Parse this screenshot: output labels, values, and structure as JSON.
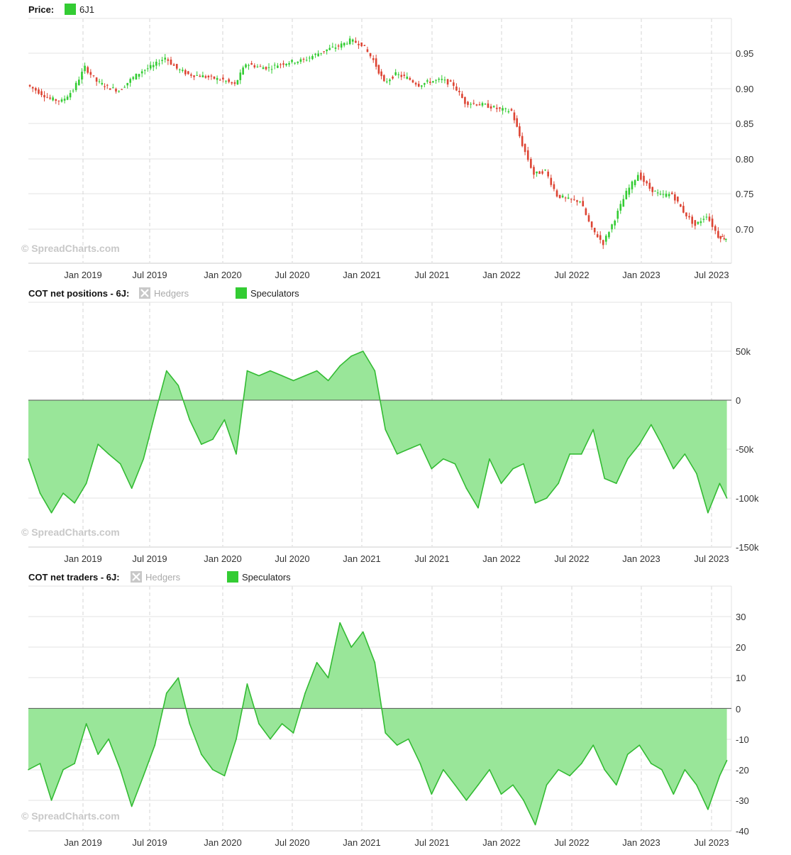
{
  "watermark": "© SpreadCharts.com",
  "chart_data": [
    {
      "type": "candlestick",
      "title": "Price:",
      "legend": [
        {
          "name": "6J1",
          "color": "#33cc33",
          "active": true
        }
      ],
      "x_ticks": [
        "Jan 2019",
        "Jul 2019",
        "Jan 2020",
        "Jul 2020",
        "Jan 2021",
        "Jul 2021",
        "Jan 2022",
        "Jul 2022",
        "Jan 2023",
        "Jul 2023"
      ],
      "x_range": [
        "2018-08-01",
        "2023-09-01"
      ],
      "y_ticks": [
        "0.95",
        "0.90",
        "0.85",
        "0.80",
        "0.75",
        "0.70"
      ],
      "ylim": [
        0.655,
        1.0
      ],
      "up_color": "#33cc33",
      "down_color": "#dd4433",
      "series": [
        {
          "name": "6J1",
          "points": [
            [
              "2018-08-01",
              0.905
            ],
            [
              "2018-09-01",
              0.895
            ],
            [
              "2018-10-01",
              0.885
            ],
            [
              "2018-11-01",
              0.882
            ],
            [
              "2018-12-01",
              0.898
            ],
            [
              "2019-01-01",
              0.93
            ],
            [
              "2019-02-01",
              0.91
            ],
            [
              "2019-03-01",
              0.902
            ],
            [
              "2019-04-01",
              0.897
            ],
            [
              "2019-05-01",
              0.912
            ],
            [
              "2019-06-01",
              0.925
            ],
            [
              "2019-07-01",
              0.932
            ],
            [
              "2019-08-01",
              0.944
            ],
            [
              "2019-09-01",
              0.928
            ],
            [
              "2019-10-01",
              0.92
            ],
            [
              "2019-11-01",
              0.918
            ],
            [
              "2019-12-01",
              0.915
            ],
            [
              "2020-01-01",
              0.912
            ],
            [
              "2020-02-01",
              0.905
            ],
            [
              "2020-03-01",
              0.935
            ],
            [
              "2020-04-01",
              0.931
            ],
            [
              "2020-05-01",
              0.929
            ],
            [
              "2020-06-01",
              0.935
            ],
            [
              "2020-07-01",
              0.938
            ],
            [
              "2020-08-01",
              0.94
            ],
            [
              "2020-09-01",
              0.948
            ],
            [
              "2020-10-01",
              0.955
            ],
            [
              "2020-11-01",
              0.96
            ],
            [
              "2020-12-01",
              0.968
            ],
            [
              "2021-01-01",
              0.963
            ],
            [
              "2021-02-01",
              0.94
            ],
            [
              "2021-03-01",
              0.908
            ],
            [
              "2021-04-01",
              0.92
            ],
            [
              "2021-05-01",
              0.915
            ],
            [
              "2021-06-01",
              0.905
            ],
            [
              "2021-07-01",
              0.91
            ],
            [
              "2021-08-01",
              0.912
            ],
            [
              "2021-09-01",
              0.905
            ],
            [
              "2021-10-01",
              0.88
            ],
            [
              "2021-11-01",
              0.878
            ],
            [
              "2021-12-01",
              0.875
            ],
            [
              "2022-01-01",
              0.87
            ],
            [
              "2022-02-01",
              0.868
            ],
            [
              "2022-03-01",
              0.82
            ],
            [
              "2022-04-01",
              0.778
            ],
            [
              "2022-05-01",
              0.783
            ],
            [
              "2022-06-01",
              0.748
            ],
            [
              "2022-07-01",
              0.742
            ],
            [
              "2022-08-01",
              0.74
            ],
            [
              "2022-09-01",
              0.7
            ],
            [
              "2022-10-01",
              0.68
            ],
            [
              "2022-11-01",
              0.715
            ],
            [
              "2022-12-01",
              0.752
            ],
            [
              "2023-01-01",
              0.778
            ],
            [
              "2023-02-01",
              0.758
            ],
            [
              "2023-03-01",
              0.748
            ],
            [
              "2023-04-01",
              0.75
            ],
            [
              "2023-05-01",
              0.725
            ],
            [
              "2023-06-01",
              0.705
            ],
            [
              "2023-07-01",
              0.72
            ],
            [
              "2023-08-01",
              0.69
            ],
            [
              "2023-08-20",
              0.687
            ]
          ]
        }
      ]
    },
    {
      "type": "area",
      "title": "COT net positions - 6J:",
      "legend": [
        {
          "name": "Hedgers",
          "color": "#bbbbbb",
          "active": false
        },
        {
          "name": "Speculators",
          "color": "#33cc33",
          "active": true
        }
      ],
      "x_ticks": [
        "Jan 2019",
        "Jul 2019",
        "Jan 2020",
        "Jul 2020",
        "Jan 2021",
        "Jul 2021",
        "Jan 2022",
        "Jul 2022",
        "Jan 2023",
        "Jul 2023"
      ],
      "x_range": [
        "2018-08-01",
        "2023-09-01"
      ],
      "y_ticks": [
        "50k",
        "0",
        "-50k",
        "-100k",
        "-150k"
      ],
      "y_tick_values": [
        50000,
        0,
        -50000,
        -100000,
        -150000
      ],
      "ylim": [
        -150000,
        100000
      ],
      "series": [
        {
          "name": "Speculators",
          "line_color": "#33bb33",
          "fill_color": "#99e699",
          "points": [
            [
              "2018-08-01",
              -60000
            ],
            [
              "2018-09-01",
              -95000
            ],
            [
              "2018-10-01",
              -115000
            ],
            [
              "2018-11-01",
              -95000
            ],
            [
              "2018-12-01",
              -105000
            ],
            [
              "2019-01-01",
              -85000
            ],
            [
              "2019-02-01",
              -45000
            ],
            [
              "2019-03-01",
              -55000
            ],
            [
              "2019-04-01",
              -65000
            ],
            [
              "2019-05-01",
              -90000
            ],
            [
              "2019-06-01",
              -60000
            ],
            [
              "2019-07-01",
              -15000
            ],
            [
              "2019-08-01",
              30000
            ],
            [
              "2019-09-01",
              15000
            ],
            [
              "2019-10-01",
              -20000
            ],
            [
              "2019-11-01",
              -45000
            ],
            [
              "2019-12-01",
              -40000
            ],
            [
              "2020-01-01",
              -20000
            ],
            [
              "2020-02-01",
              -55000
            ],
            [
              "2020-03-01",
              30000
            ],
            [
              "2020-04-01",
              25000
            ],
            [
              "2020-05-01",
              30000
            ],
            [
              "2020-06-01",
              25000
            ],
            [
              "2020-07-01",
              20000
            ],
            [
              "2020-08-01",
              25000
            ],
            [
              "2020-09-01",
              30000
            ],
            [
              "2020-10-01",
              20000
            ],
            [
              "2020-11-01",
              35000
            ],
            [
              "2020-12-01",
              45000
            ],
            [
              "2021-01-01",
              50000
            ],
            [
              "2021-02-01",
              30000
            ],
            [
              "2021-03-01",
              -30000
            ],
            [
              "2021-04-01",
              -55000
            ],
            [
              "2021-05-01",
              -50000
            ],
            [
              "2021-06-01",
              -45000
            ],
            [
              "2021-07-01",
              -70000
            ],
            [
              "2021-08-01",
              -60000
            ],
            [
              "2021-09-01",
              -65000
            ],
            [
              "2021-10-01",
              -90000
            ],
            [
              "2021-11-01",
              -110000
            ],
            [
              "2021-12-01",
              -60000
            ],
            [
              "2022-01-01",
              -85000
            ],
            [
              "2022-02-01",
              -70000
            ],
            [
              "2022-03-01",
              -65000
            ],
            [
              "2022-04-01",
              -105000
            ],
            [
              "2022-05-01",
              -100000
            ],
            [
              "2022-06-01",
              -85000
            ],
            [
              "2022-07-01",
              -55000
            ],
            [
              "2022-08-01",
              -55000
            ],
            [
              "2022-09-01",
              -30000
            ],
            [
              "2022-10-01",
              -80000
            ],
            [
              "2022-11-01",
              -85000
            ],
            [
              "2022-12-01",
              -60000
            ],
            [
              "2023-01-01",
              -45000
            ],
            [
              "2023-02-01",
              -25000
            ],
            [
              "2023-03-01",
              -45000
            ],
            [
              "2023-04-01",
              -70000
            ],
            [
              "2023-05-01",
              -55000
            ],
            [
              "2023-06-01",
              -75000
            ],
            [
              "2023-07-01",
              -115000
            ],
            [
              "2023-08-01",
              -85000
            ],
            [
              "2023-08-20",
              -100000
            ]
          ]
        }
      ]
    },
    {
      "type": "area",
      "title": "COT net traders - 6J:",
      "legend": [
        {
          "name": "Hedgers",
          "color": "#bbbbbb",
          "active": false
        },
        {
          "name": "Speculators",
          "color": "#33cc33",
          "active": true
        }
      ],
      "x_ticks": [
        "Jan 2019",
        "Jul 2019",
        "Jan 2020",
        "Jul 2020",
        "Jan 2021",
        "Jul 2021",
        "Jan 2022",
        "Jul 2022",
        "Jan 2023",
        "Jul 2023"
      ],
      "x_range": [
        "2018-08-01",
        "2023-09-01"
      ],
      "y_ticks": [
        "30",
        "20",
        "10",
        "0",
        "-10",
        "-20",
        "-30",
        "-40"
      ],
      "y_tick_values": [
        30,
        20,
        10,
        0,
        -10,
        -20,
        -30,
        -40
      ],
      "ylim": [
        -40,
        40
      ],
      "series": [
        {
          "name": "Speculators",
          "line_color": "#33bb33",
          "fill_color": "#99e699",
          "points": [
            [
              "2018-08-01",
              -20
            ],
            [
              "2018-09-01",
              -18
            ],
            [
              "2018-10-01",
              -30
            ],
            [
              "2018-11-01",
              -20
            ],
            [
              "2018-12-01",
              -18
            ],
            [
              "2019-01-01",
              -5
            ],
            [
              "2019-02-01",
              -15
            ],
            [
              "2019-03-01",
              -10
            ],
            [
              "2019-04-01",
              -20
            ],
            [
              "2019-05-01",
              -32
            ],
            [
              "2019-06-01",
              -22
            ],
            [
              "2019-07-01",
              -12
            ],
            [
              "2019-08-01",
              5
            ],
            [
              "2019-09-01",
              10
            ],
            [
              "2019-10-01",
              -5
            ],
            [
              "2019-11-01",
              -15
            ],
            [
              "2019-12-01",
              -20
            ],
            [
              "2020-01-01",
              -22
            ],
            [
              "2020-02-01",
              -10
            ],
            [
              "2020-03-01",
              8
            ],
            [
              "2020-04-01",
              -5
            ],
            [
              "2020-05-01",
              -10
            ],
            [
              "2020-06-01",
              -5
            ],
            [
              "2020-07-01",
              -8
            ],
            [
              "2020-08-01",
              5
            ],
            [
              "2020-09-01",
              15
            ],
            [
              "2020-10-01",
              10
            ],
            [
              "2020-11-01",
              28
            ],
            [
              "2020-12-01",
              20
            ],
            [
              "2021-01-01",
              25
            ],
            [
              "2021-02-01",
              15
            ],
            [
              "2021-03-01",
              -8
            ],
            [
              "2021-04-01",
              -12
            ],
            [
              "2021-05-01",
              -10
            ],
            [
              "2021-06-01",
              -18
            ],
            [
              "2021-07-01",
              -28
            ],
            [
              "2021-08-01",
              -20
            ],
            [
              "2021-09-01",
              -25
            ],
            [
              "2021-10-01",
              -30
            ],
            [
              "2021-11-01",
              -25
            ],
            [
              "2021-12-01",
              -20
            ],
            [
              "2022-01-01",
              -28
            ],
            [
              "2022-02-01",
              -25
            ],
            [
              "2022-03-01",
              -30
            ],
            [
              "2022-04-01",
              -38
            ],
            [
              "2022-05-01",
              -25
            ],
            [
              "2022-06-01",
              -20
            ],
            [
              "2022-07-01",
              -22
            ],
            [
              "2022-08-01",
              -18
            ],
            [
              "2022-09-01",
              -12
            ],
            [
              "2022-10-01",
              -20
            ],
            [
              "2022-11-01",
              -25
            ],
            [
              "2022-12-01",
              -15
            ],
            [
              "2023-01-01",
              -12
            ],
            [
              "2023-02-01",
              -18
            ],
            [
              "2023-03-01",
              -20
            ],
            [
              "2023-04-01",
              -28
            ],
            [
              "2023-05-01",
              -20
            ],
            [
              "2023-06-01",
              -25
            ],
            [
              "2023-07-01",
              -33
            ],
            [
              "2023-08-01",
              -22
            ],
            [
              "2023-08-20",
              -17
            ]
          ]
        }
      ]
    }
  ]
}
